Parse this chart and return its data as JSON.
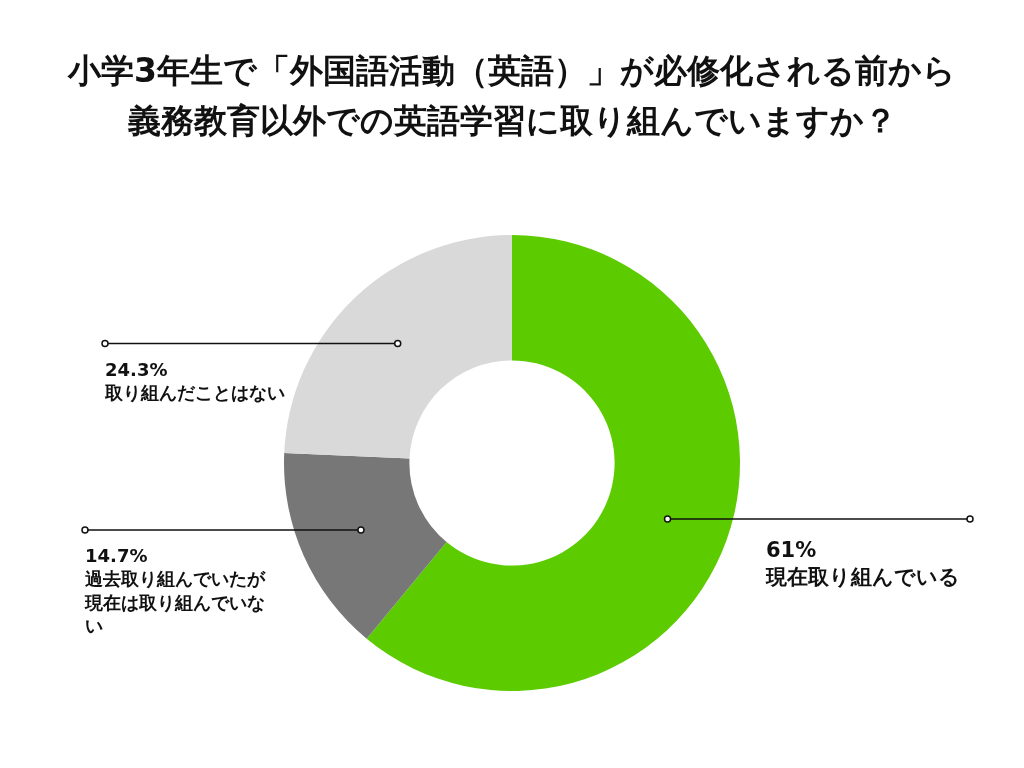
{
  "chart_data": {
    "type": "donut",
    "title": "小学3年生で「外国語活動（英語）」が必修化される前から義務教育以外での英語学習に取り組んでいますか？",
    "categories": [
      "現在取り組んでいる",
      "過去取り組んでいたが現在は取り組んでいない",
      "取り組んだことはない"
    ],
    "values": [
      61,
      14.7,
      24.3
    ],
    "colors": [
      "#5ccc00",
      "#777777",
      "#d9d9d9"
    ],
    "value_labels": [
      "61%",
      "14.7%",
      "24.3%"
    ]
  }
}
